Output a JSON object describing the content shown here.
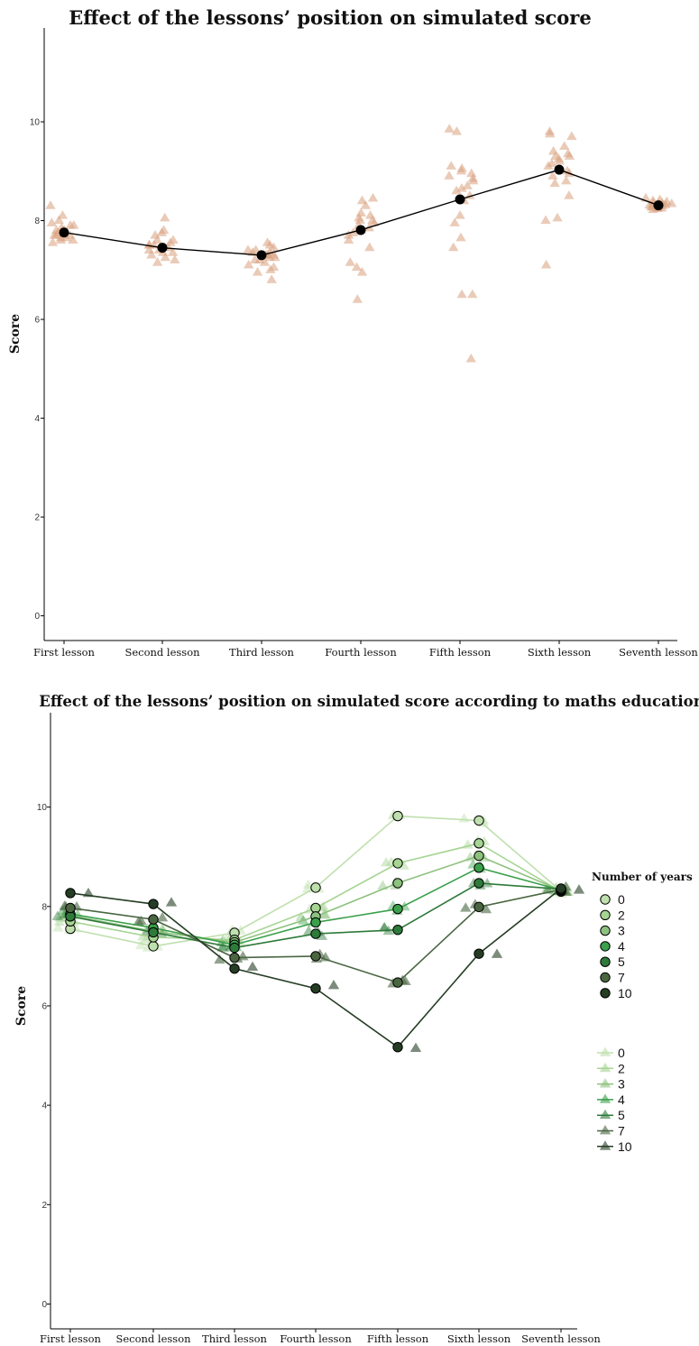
{
  "chart_data": [
    {
      "type": "scatter",
      "title": "Effect of the lessons’ position on simulated score",
      "xlabel": "",
      "ylabel": "Score",
      "ylim": [
        -0.5,
        11.9
      ],
      "yticks": [
        0,
        2,
        4,
        6,
        8,
        10
      ],
      "grid": false,
      "categories": [
        "First lesson",
        "Second lesson",
        "Third lesson",
        "Fourth lesson",
        "Fifth lesson",
        "Sixth lesson",
        "Seventh lesson"
      ],
      "means": [
        7.76,
        7.45,
        7.3,
        7.81,
        8.43,
        9.03,
        8.31
      ],
      "colors": {
        "points": "#d9a07d",
        "mean": "#000000"
      },
      "points": [
        [
          8.3,
          8.1,
          8.0,
          7.95,
          7.9,
          7.85,
          7.8,
          7.8,
          7.75,
          7.75,
          7.7,
          7.7,
          7.7,
          7.65,
          7.65,
          7.6,
          7.6,
          7.55,
          7.8,
          7.9
        ],
        [
          8.05,
          7.8,
          7.75,
          7.7,
          7.6,
          7.55,
          7.5,
          7.5,
          7.45,
          7.45,
          7.4,
          7.4,
          7.35,
          7.35,
          7.3,
          7.25,
          7.2,
          7.15,
          7.6,
          7.5
        ],
        [
          7.55,
          7.5,
          7.45,
          7.4,
          7.35,
          7.35,
          7.3,
          7.3,
          7.25,
          7.25,
          7.2,
          7.2,
          7.15,
          7.1,
          7.05,
          7.0,
          6.95,
          6.8,
          7.4,
          7.3
        ],
        [
          8.45,
          8.4,
          8.3,
          8.15,
          8.1,
          8.05,
          8.0,
          7.95,
          7.9,
          7.85,
          7.8,
          7.75,
          7.7,
          7.6,
          7.45,
          7.15,
          7.05,
          6.95,
          6.4,
          8.0
        ],
        [
          9.85,
          9.8,
          9.1,
          9.05,
          9.0,
          8.95,
          8.9,
          8.85,
          8.8,
          8.7,
          8.65,
          8.6,
          8.5,
          8.4,
          8.1,
          7.95,
          7.65,
          7.45,
          6.5,
          6.5,
          5.2
        ],
        [
          9.8,
          9.75,
          9.7,
          9.5,
          9.4,
          9.35,
          9.3,
          9.3,
          9.25,
          9.2,
          9.15,
          9.1,
          9.0,
          8.95,
          8.9,
          8.8,
          8.75,
          8.5,
          8.05,
          8.0,
          7.1
        ],
        [
          8.45,
          8.42,
          8.4,
          8.38,
          8.36,
          8.35,
          8.34,
          8.33,
          8.32,
          8.31,
          8.3,
          8.29,
          8.28,
          8.27,
          8.26,
          8.25,
          8.24,
          8.22,
          8.3,
          8.35
        ]
      ]
    },
    {
      "type": "line",
      "title": "Effect of the lessons’ position on simulated score according to maths education",
      "xlabel": "",
      "ylabel": "Score",
      "ylim": [
        -0.5,
        11.9
      ],
      "yticks": [
        0,
        2,
        4,
        6,
        8,
        10
      ],
      "grid": false,
      "categories": [
        "First lesson",
        "Second lesson",
        "Third lesson",
        "Fourth lesson",
        "Fifth lesson",
        "Sixth lesson",
        "Seventh lesson"
      ],
      "legend_title": "Number of years",
      "legend_position": "right",
      "series": [
        {
          "name": "0",
          "color": "#bfe0ae",
          "values": [
            7.55,
            7.2,
            7.47,
            8.38,
            9.82,
            9.73,
            8.31
          ]
        },
        {
          "name": "2",
          "color": "#a6d593",
          "values": [
            7.7,
            7.38,
            7.33,
            7.97,
            8.87,
            9.27,
            8.3
          ]
        },
        {
          "name": "3",
          "color": "#8dc17e",
          "values": [
            7.82,
            7.5,
            7.28,
            7.8,
            8.47,
            9.02,
            8.32
          ]
        },
        {
          "name": "4",
          "color": "#3aa04a",
          "values": [
            7.85,
            7.57,
            7.23,
            7.68,
            7.95,
            8.78,
            8.33
          ]
        },
        {
          "name": "5",
          "color": "#2e7a3a",
          "values": [
            7.8,
            7.48,
            7.17,
            7.45,
            7.53,
            8.47,
            8.35
          ]
        },
        {
          "name": "7",
          "color": "#4a6641",
          "values": [
            7.97,
            7.74,
            6.97,
            7.0,
            6.47,
            7.99,
            8.34
          ]
        },
        {
          "name": "10",
          "color": "#253d24",
          "values": [
            8.27,
            8.05,
            6.75,
            6.35,
            5.17,
            7.05,
            8.36
          ]
        }
      ]
    }
  ]
}
